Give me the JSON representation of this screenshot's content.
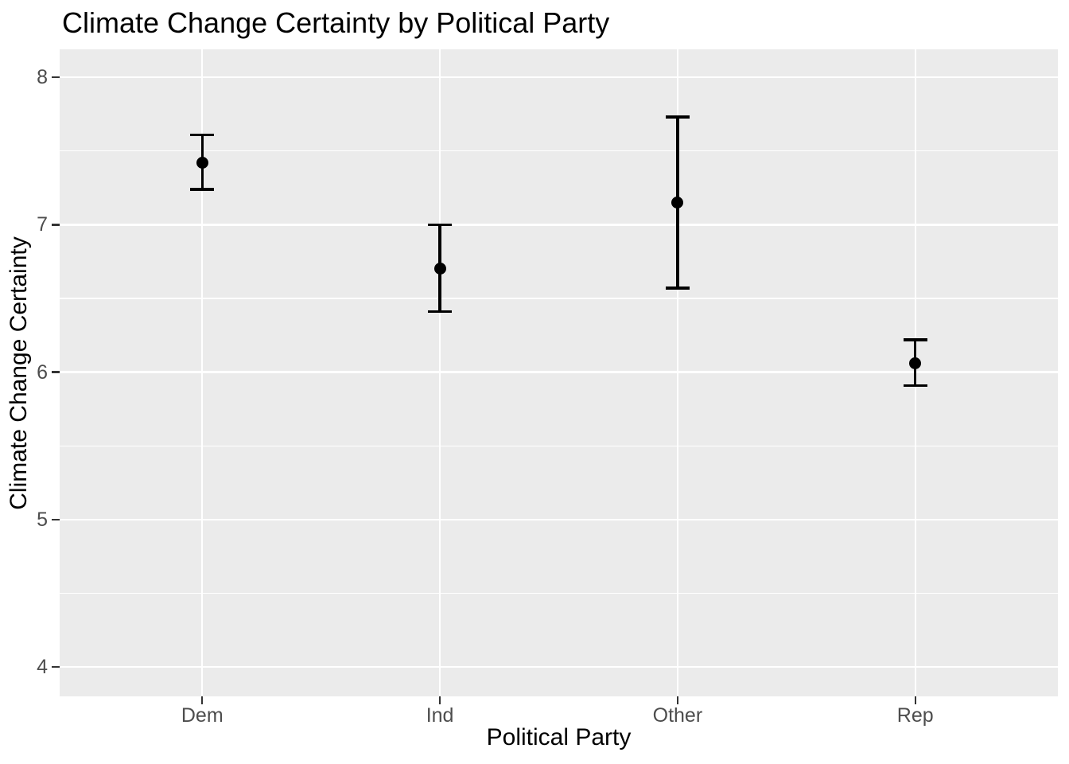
{
  "chart_data": {
    "type": "pointrange",
    "title": "Climate Change Certainty by Political Party",
    "xlabel": "Political Party",
    "ylabel": "Climate Change Certainty",
    "categories": [
      "Dem",
      "Ind",
      "Other",
      "Rep"
    ],
    "points": [
      {
        "category": "Dem",
        "mean": 7.42,
        "ci_low": 7.24,
        "ci_high": 7.61
      },
      {
        "category": "Ind",
        "mean": 6.7,
        "ci_low": 6.41,
        "ci_high": 7.0
      },
      {
        "category": "Other",
        "mean": 7.15,
        "ci_low": 6.57,
        "ci_high": 7.73
      },
      {
        "category": "Rep",
        "mean": 6.06,
        "ci_low": 5.91,
        "ci_high": 6.22
      }
    ],
    "ylim": [
      3.8,
      8.19
    ],
    "yticks": [
      4,
      5,
      6,
      7,
      8
    ],
    "ytick_labels": [
      "4",
      "5",
      "6",
      "7",
      "8"
    ],
    "yticks_minor": [
      4.5,
      5.5,
      6.5,
      7.5
    ],
    "grid": "on",
    "legend": "none",
    "colors": {
      "panel_background": "#EBEBEB",
      "gridline": "#FFFFFF",
      "data": "#000000",
      "tick_label": "#4D4D4D",
      "tick_mark": "#333333",
      "title": "#000000"
    }
  }
}
